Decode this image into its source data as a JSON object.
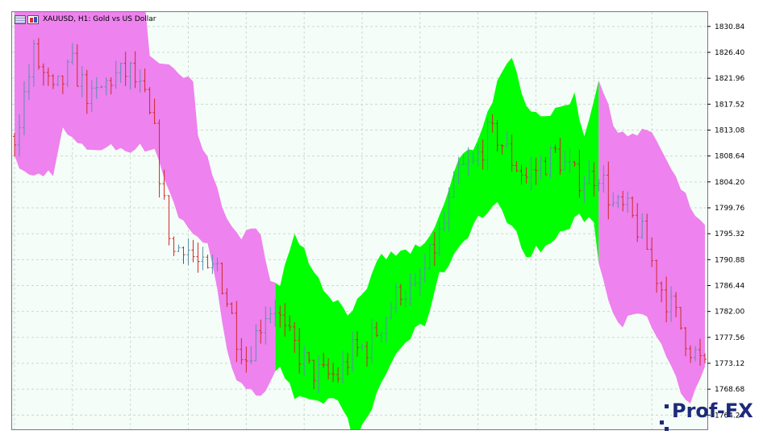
{
  "header": {
    "title": "XAUUSD, H1:  Gold vs US Dollar",
    "icons": [
      "table-icon",
      "candlestick-icon"
    ]
  },
  "watermark": {
    "text": "Prof-FX"
  },
  "colors": {
    "background": "#f5fdf8",
    "grid": "#c9dccf",
    "band_bull": "#00ff00",
    "band_bear": "#ee82ee",
    "candle_up": "#5b8fb0",
    "candle_down": "#d02828",
    "axis_text": "#000000"
  },
  "chart_data": {
    "type": "candlestick",
    "symbol": "XAUUSD",
    "timeframe": "H1",
    "grid": true,
    "ylim": [
      1761.8,
      1833.3
    ],
    "yticks": [
      1830.84,
      1826.4,
      1821.96,
      1817.52,
      1813.08,
      1808.64,
      1804.2,
      1799.76,
      1795.32,
      1790.88,
      1786.44,
      1782.0,
      1777.56,
      1773.12,
      1768.68,
      1764.24
    ],
    "bar_count": 144,
    "band": {
      "description": "filled channel behind price; green = bullish, violet = bearish",
      "segments": [
        {
          "from_bar": 0,
          "to_bar": 53,
          "color": "bear"
        },
        {
          "from_bar": 54,
          "to_bar": 120,
          "color": "bull"
        },
        {
          "from_bar": 121,
          "to_bar": 143,
          "color": "bear"
        }
      ],
      "upper_keys": [
        [
          0,
          1836
        ],
        [
          10,
          1835
        ],
        [
          27,
          1835
        ],
        [
          28,
          1826
        ],
        [
          33,
          1823
        ],
        [
          37,
          1821
        ],
        [
          38,
          1812
        ],
        [
          42,
          1804
        ],
        [
          44,
          1797
        ],
        [
          47,
          1795
        ],
        [
          51,
          1796
        ],
        [
          53,
          1787
        ],
        [
          55,
          1786
        ],
        [
          58,
          1796
        ],
        [
          61,
          1791
        ],
        [
          64,
          1786
        ],
        [
          69,
          1782
        ],
        [
          73,
          1785
        ],
        [
          75,
          1791
        ],
        [
          80,
          1792
        ],
        [
          85,
          1793
        ],
        [
          88,
          1798
        ],
        [
          92,
          1808
        ],
        [
          95,
          1810
        ],
        [
          98,
          1816
        ],
        [
          100,
          1821
        ],
        [
          103,
          1825
        ],
        [
          106,
          1818
        ],
        [
          108,
          1816
        ],
        [
          112,
          1816
        ],
        [
          116,
          1819
        ],
        [
          118,
          1812
        ],
        [
          121,
          1822
        ],
        [
          124,
          1814
        ],
        [
          128,
          1812
        ],
        [
          132,
          1813
        ],
        [
          136,
          1806
        ],
        [
          140,
          1800
        ],
        [
          143,
          1796
        ]
      ],
      "lower_keys": [
        [
          0,
          1808
        ],
        [
          3,
          1805
        ],
        [
          8,
          1806
        ],
        [
          10,
          1813
        ],
        [
          14,
          1810
        ],
        [
          27,
          1810
        ],
        [
          29,
          1810
        ],
        [
          34,
          1798
        ],
        [
          38,
          1795
        ],
        [
          40,
          1793
        ],
        [
          42,
          1786
        ],
        [
          44,
          1776
        ],
        [
          46,
          1770
        ],
        [
          48,
          1768
        ],
        [
          51,
          1768
        ],
        [
          55,
          1773
        ],
        [
          58,
          1767
        ],
        [
          62,
          1766
        ],
        [
          65,
          1767
        ],
        [
          68,
          1766
        ],
        [
          70,
          1760
        ],
        [
          73,
          1763
        ],
        [
          76,
          1770
        ],
        [
          80,
          1776
        ],
        [
          85,
          1780
        ],
        [
          88,
          1788
        ],
        [
          92,
          1793
        ],
        [
          96,
          1798
        ],
        [
          100,
          1800
        ],
        [
          102,
          1798
        ],
        [
          106,
          1792
        ],
        [
          110,
          1793
        ],
        [
          114,
          1796
        ],
        [
          117,
          1798
        ],
        [
          120,
          1798
        ],
        [
          121,
          1790
        ],
        [
          124,
          1782
        ],
        [
          126,
          1780
        ],
        [
          128,
          1781
        ],
        [
          131,
          1781
        ],
        [
          134,
          1776
        ],
        [
          137,
          1770
        ],
        [
          139,
          1766
        ],
        [
          141,
          1768
        ],
        [
          143,
          1772
        ]
      ],
      "path_points": [
        [
          0,
          1812
        ],
        [
          4,
          1826
        ],
        [
          8,
          1819
        ],
        [
          12,
          1824
        ],
        [
          16,
          1818
        ],
        [
          20,
          1822
        ],
        [
          24,
          1823
        ],
        [
          27,
          1818
        ],
        [
          29,
          1812
        ],
        [
          31,
          1800
        ],
        [
          33,
          1792
        ],
        [
          35,
          1794
        ],
        [
          38,
          1790
        ],
        [
          40,
          1788
        ],
        [
          42,
          1790
        ],
        [
          44,
          1784
        ],
        [
          46,
          1778
        ],
        [
          48,
          1774
        ],
        [
          50,
          1778
        ],
        [
          52,
          1782
        ],
        [
          54,
          1783
        ],
        [
          56,
          1778
        ],
        [
          58,
          1776
        ],
        [
          61,
          1772
        ],
        [
          64,
          1771
        ],
        [
          67,
          1771
        ],
        [
          70,
          1775
        ],
        [
          73,
          1776
        ],
        [
          76,
          1780
        ],
        [
          80,
          1786
        ],
        [
          83,
          1785
        ],
        [
          86,
          1791
        ],
        [
          89,
          1797
        ],
        [
          92,
          1806
        ],
        [
          95,
          1807
        ],
        [
          98,
          1812
        ],
        [
          100,
          1812
        ],
        [
          103,
          1808
        ],
        [
          106,
          1805
        ],
        [
          109,
          1807
        ],
        [
          112,
          1809
        ],
        [
          116,
          1805
        ],
        [
          119,
          1805
        ],
        [
          121,
          1806
        ],
        [
          124,
          1800
        ],
        [
          127,
          1799
        ],
        [
          130,
          1795
        ],
        [
          134,
          1786
        ],
        [
          137,
          1781
        ],
        [
          140,
          1776
        ],
        [
          143,
          1772
        ]
      ]
    }
  }
}
